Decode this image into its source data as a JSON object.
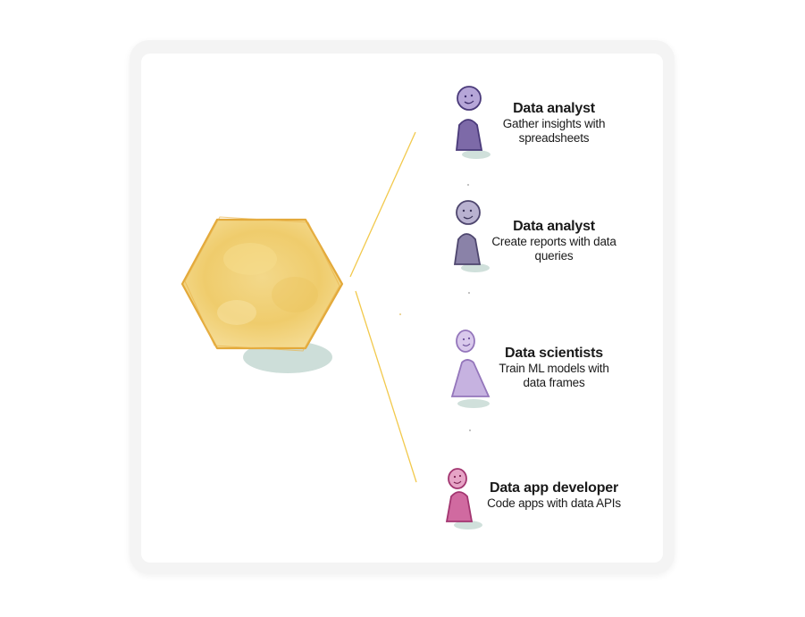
{
  "colors": {
    "hexagon_fill": "#f4d27a",
    "hexagon_stroke": "#e6ac33",
    "connector": "#f2c94c",
    "shadow": "#bcd3cc"
  },
  "personas": [
    {
      "title": "Data analyst",
      "description_line1": "Gather insights with",
      "description_line2": "spreadsheets",
      "icon": "person-icon",
      "color": "#5a4a8c"
    },
    {
      "title": "Data analyst",
      "description_line1": "Create reports with data",
      "description_line2": "queries",
      "icon": "person-icon",
      "color": "#5e5682"
    },
    {
      "title": "Data scientists",
      "description_line1": "Train ML models with",
      "description_line2": "data frames",
      "icon": "person-icon",
      "color": "#a485c7"
    },
    {
      "title": "Data app developer",
      "description_line1": "Code apps with data APIs",
      "description_line2": "",
      "icon": "person-icon",
      "color": "#b0407c"
    }
  ]
}
